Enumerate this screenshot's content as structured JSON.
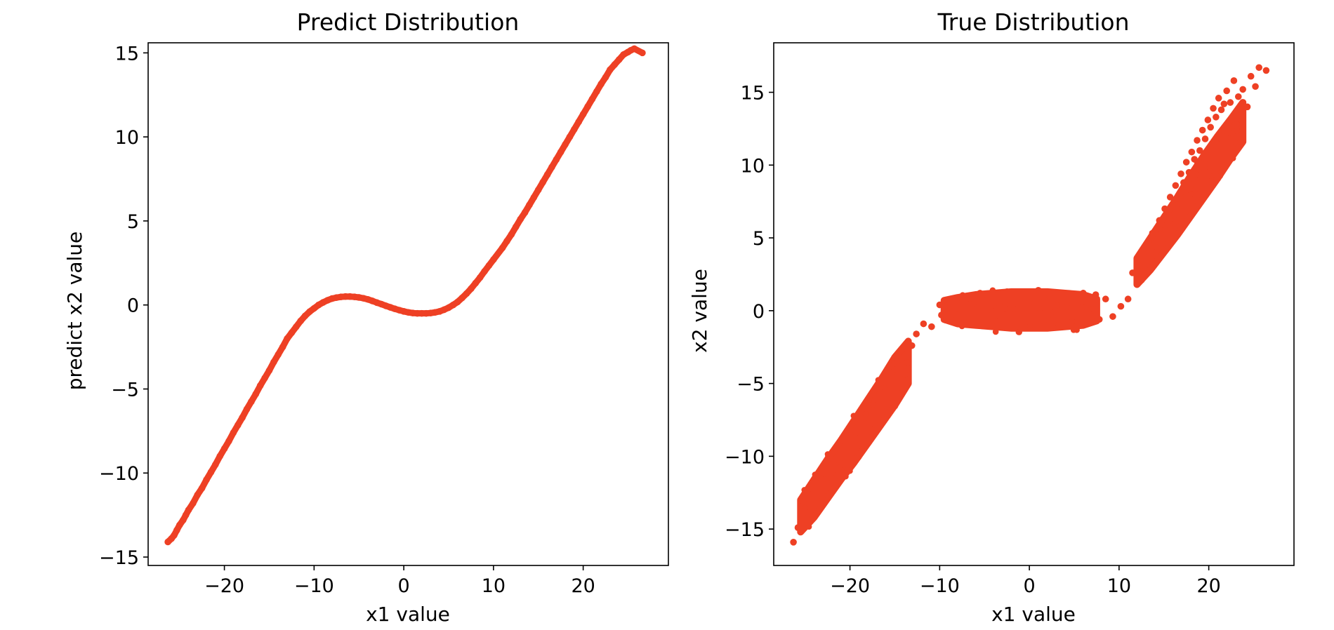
{
  "chart_data": [
    {
      "type": "scatter",
      "title": "Predict Distribution",
      "xlabel": "x1 value",
      "ylabel": "predict x2 value",
      "xlim": [
        -28.5,
        29.5
      ],
      "ylim": [
        -15.5,
        15.6
      ],
      "xticks": [
        -20,
        -10,
        0,
        10,
        20
      ],
      "xtick_labels": [
        "−20",
        "−10",
        "0",
        "10",
        "20"
      ],
      "yticks": [
        -15,
        -10,
        -5,
        0,
        5,
        10,
        15
      ],
      "ytick_labels": [
        "−15",
        "−10",
        "−5",
        "0",
        "5",
        "10",
        "15"
      ],
      "marker_color": "#ee4024",
      "grid": false,
      "series": [
        {
          "x": [
            -26.3,
            -25.9,
            -25.6,
            -25.3,
            -25.0,
            -24.6,
            -24.3,
            -24.0,
            -23.5,
            -23.0,
            -22.5,
            -22.0,
            -21.5,
            -21.0,
            -20.5,
            -20.0,
            -19.5,
            -19.0,
            -18.5,
            -18.0,
            -17.5,
            -17.0,
            -16.5,
            -16.0,
            -15.5,
            -15.0,
            -14.5,
            -14.0,
            -13.5,
            -13.0,
            -12.5,
            -12.0,
            -11.5,
            -11.0,
            -10.5,
            -10.0,
            -9.5,
            -9.0,
            -8.5,
            -8.0,
            -7.5,
            -7.0,
            -6.5,
            -6.0,
            -5.5,
            -5.0,
            -4.5,
            -4.0,
            -3.5,
            -3.0,
            -2.5,
            -2.0,
            -1.5,
            -1.0,
            -0.5,
            0.0,
            0.5,
            1.0,
            1.5,
            2.0,
            2.5,
            3.0,
            3.5,
            4.0,
            4.5,
            5.0,
            5.5,
            6.0,
            6.5,
            7.0,
            7.5,
            8.0,
            8.5,
            9.0,
            9.5,
            10.0,
            11.0,
            11.5,
            12.0,
            12.5,
            13.0,
            13.5,
            14.0,
            14.5,
            15.0,
            15.5,
            16.0,
            16.5,
            17.0,
            17.5,
            18.0,
            18.5,
            19.0,
            19.5,
            20.0,
            20.5,
            21.0,
            21.5,
            22.0,
            22.5,
            23.0,
            23.5,
            24.0,
            24.5,
            25.0,
            25.3,
            25.7,
            26.6
          ],
          "y": [
            -14.1,
            -13.9,
            -13.7,
            -13.4,
            -13.1,
            -12.8,
            -12.5,
            -12.2,
            -11.8,
            -11.3,
            -10.9,
            -10.4,
            -9.95,
            -9.5,
            -9.0,
            -8.55,
            -8.1,
            -7.6,
            -7.15,
            -6.7,
            -6.2,
            -5.75,
            -5.3,
            -4.8,
            -4.35,
            -3.9,
            -3.4,
            -2.95,
            -2.5,
            -2.0,
            -1.65,
            -1.3,
            -0.95,
            -0.65,
            -0.4,
            -0.2,
            0.0,
            0.15,
            0.28,
            0.38,
            0.44,
            0.48,
            0.5,
            0.5,
            0.48,
            0.45,
            0.4,
            0.33,
            0.24,
            0.14,
            0.05,
            -0.05,
            -0.14,
            -0.23,
            -0.31,
            -0.38,
            -0.44,
            -0.48,
            -0.5,
            -0.5,
            -0.5,
            -0.48,
            -0.44,
            -0.38,
            -0.28,
            -0.16,
            0.0,
            0.18,
            0.42,
            0.68,
            0.97,
            1.3,
            1.63,
            2.0,
            2.35,
            2.7,
            3.4,
            3.8,
            4.2,
            4.65,
            5.1,
            5.5,
            5.95,
            6.4,
            6.85,
            7.3,
            7.75,
            8.2,
            8.65,
            9.1,
            9.55,
            10.0,
            10.45,
            10.9,
            11.35,
            11.8,
            12.25,
            12.7,
            13.15,
            13.55,
            14.0,
            14.3,
            14.6,
            14.9,
            15.05,
            15.15,
            15.25,
            15.0
          ]
        }
      ]
    },
    {
      "type": "scatter",
      "title": "True Distribution",
      "xlabel": "x1 value",
      "ylabel": "x2 value",
      "xlim": [
        -28.5,
        29.5
      ],
      "ylim": [
        -17.5,
        18.4
      ],
      "xticks": [
        -20,
        -10,
        0,
        10,
        20
      ],
      "xtick_labels": [
        "−20",
        "−10",
        "0",
        "10",
        "20"
      ],
      "yticks": [
        -15,
        -10,
        -5,
        0,
        5,
        10,
        15
      ],
      "ytick_labels": [
        "−15",
        "−10",
        "−5",
        "0",
        "5",
        "10",
        "15"
      ],
      "marker_color": "#ee4024",
      "grid": false,
      "series": [
        {
          "x": [
            -26.3,
            -25.8,
            -25.5,
            -25.0,
            -24.6,
            -24.0,
            -23.6,
            -23.2,
            -22.9,
            -22.5,
            -22.1,
            -21.8,
            -21.5,
            -21.2,
            -20.9,
            -20.6,
            -20.3,
            -20.0,
            -19.7,
            -19.4,
            -19.1,
            -18.8,
            -18.5,
            -18.2,
            -17.9,
            -17.6,
            -17.3,
            -17.0,
            -16.7,
            -16.4,
            -16.1,
            -15.8,
            -15.5,
            -15.2,
            -14.9,
            -14.6,
            -14.3,
            -14.0,
            -13.6,
            -13.1,
            -12.6,
            -11.8,
            -10.9,
            -10.0,
            -9.8,
            -9.5,
            -9.0,
            -8.5,
            -8.0,
            -7.5,
            -7.0,
            -6.5,
            -6.0,
            -5.5,
            -5.0,
            -4.5,
            -4.0,
            -3.5,
            -3.0,
            -2.5,
            -2.0,
            -1.5,
            -1.0,
            -0.5,
            0.0,
            0.5,
            1.0,
            1.5,
            2.0,
            2.5,
            3.0,
            3.5,
            4.0,
            4.5,
            5.0,
            5.5,
            6.0,
            6.5,
            7.0,
            7.4,
            7.8,
            8.5,
            9.3,
            10.2,
            11.0,
            11.5,
            12.0,
            12.5,
            13.0,
            13.3,
            13.6,
            13.9,
            14.2,
            14.5,
            14.8,
            15.1,
            15.4,
            15.7,
            16.0,
            16.3,
            16.6,
            16.9,
            17.2,
            17.5,
            17.8,
            18.1,
            18.4,
            18.7,
            19.0,
            19.3,
            19.6,
            19.9,
            20.2,
            20.5,
            20.8,
            21.1,
            21.4,
            21.7,
            22.0,
            22.4,
            22.8,
            23.3,
            23.8,
            24.3,
            24.7,
            25.2,
            25.6,
            26.4
          ],
          "y": [
            -15.9,
            -14.9,
            -14.5,
            -13.9,
            -13.2,
            -13.5,
            -12.6,
            -12.2,
            -11.8,
            -11.0,
            -11.3,
            -10.6,
            -10.9,
            -9.8,
            -10.2,
            -9.5,
            -9.1,
            -9.4,
            -8.8,
            -8.2,
            -8.6,
            -7.9,
            -7.3,
            -7.7,
            -7.0,
            -6.6,
            -6.9,
            -6.1,
            -5.6,
            -6.0,
            -5.1,
            -4.6,
            -5.0,
            -4.2,
            -3.7,
            -4.1,
            -3.4,
            -2.8,
            -2.9,
            -2.4,
            -1.6,
            -0.9,
            -1.1,
            0.4,
            -0.3,
            0.6,
            -0.5,
            0.8,
            0.2,
            -0.6,
            1.0,
            -0.8,
            0.3,
            1.2,
            -0.4,
            -1.0,
            0.9,
            0.5,
            -0.7,
            1.3,
            0.1,
            -0.9,
            1.1,
            -0.2,
            0.6,
            -1.1,
            1.4,
            0.0,
            -0.8,
            1.2,
            0.4,
            -0.5,
            1.0,
            -1.0,
            0.7,
            -0.3,
            1.2,
            -0.9,
            0.5,
            1.1,
            -0.6,
            0.8,
            -0.4,
            0.3,
            0.8,
            2.6,
            3.3,
            2.1,
            4.0,
            3.4,
            4.7,
            5.4,
            4.1,
            6.2,
            5.6,
            7.0,
            6.3,
            7.8,
            7.1,
            8.6,
            7.9,
            9.4,
            8.8,
            10.2,
            9.5,
            10.9,
            10.4,
            11.7,
            11.0,
            12.4,
            11.8,
            13.1,
            12.6,
            13.9,
            13.3,
            14.6,
            13.8,
            14.2,
            15.1,
            14.3,
            15.8,
            14.7,
            15.2,
            14.0,
            16.1,
            15.4,
            16.7,
            16.5
          ]
        },
        {
          "type": "band",
          "x": [
            -25.5,
            -24.0,
            -22.5,
            -21.0,
            -19.5,
            -18.0,
            -16.5,
            -15.0,
            -13.5
          ],
          "y_low": [
            -15.2,
            -14.2,
            -12.9,
            -11.6,
            -10.4,
            -9.1,
            -7.8,
            -6.5,
            -5.0
          ],
          "y_high": [
            -13.0,
            -11.6,
            -10.2,
            -8.9,
            -7.5,
            -6.1,
            -4.7,
            -3.2,
            -2.1
          ]
        },
        {
          "type": "band",
          "x": [
            -9.5,
            -8.0,
            -6.0,
            -4.0,
            -2.0,
            0.0,
            2.0,
            4.0,
            6.0,
            7.5
          ],
          "y_low": [
            -0.6,
            -0.9,
            -1.0,
            -1.1,
            -1.2,
            -1.2,
            -1.2,
            -1.1,
            -1.0,
            -0.7
          ],
          "y_high": [
            0.7,
            0.9,
            1.1,
            1.2,
            1.3,
            1.3,
            1.3,
            1.2,
            1.1,
            0.8
          ]
        },
        {
          "type": "band",
          "x": [
            12.0,
            13.5,
            15.0,
            16.5,
            18.0,
            19.5,
            21.0,
            22.5,
            23.8
          ],
          "y_low": [
            1.8,
            2.8,
            4.0,
            5.2,
            6.5,
            7.8,
            9.1,
            10.5,
            11.6
          ],
          "y_high": [
            3.6,
            5.0,
            6.4,
            7.8,
            9.3,
            10.7,
            12.0,
            13.2,
            14.3
          ]
        }
      ]
    }
  ]
}
